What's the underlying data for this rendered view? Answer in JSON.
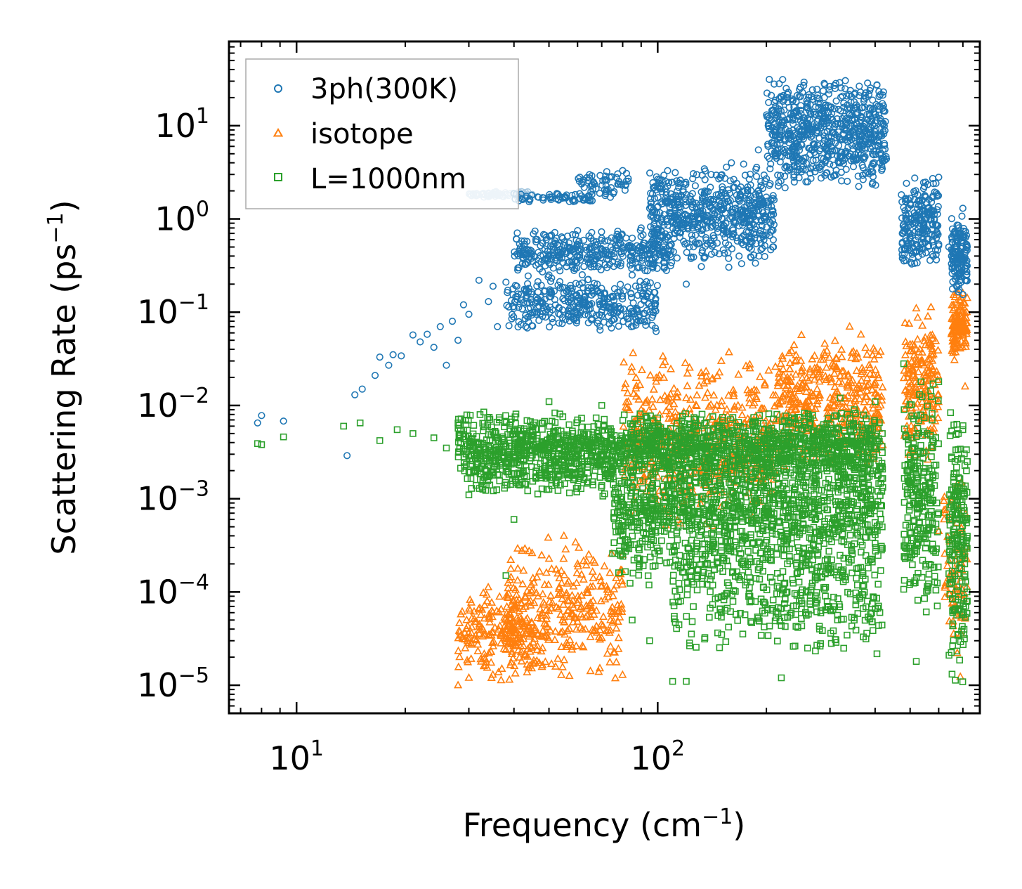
{
  "chart_data": {
    "type": "scatter",
    "title": "",
    "xlabel": "Frequency (cm⁻¹)",
    "ylabel": "Scattering Rate (ps⁻¹)",
    "xlabel_parts": {
      "prefix": "Frequency (cm",
      "sup": "−1",
      "suffix": ")"
    },
    "ylabel_parts": {
      "prefix": "Scattering Rate (ps",
      "sup": "−1",
      "suffix": ")"
    },
    "xscale": "log",
    "yscale": "log",
    "xlim": [
      6.5,
      780
    ],
    "ylim": [
      5e-06,
      80
    ],
    "x_ticks": [
      {
        "value": 10,
        "base": "10",
        "exp": "1"
      },
      {
        "value": 100,
        "base": "10",
        "exp": "2"
      }
    ],
    "y_ticks": [
      {
        "value": 10,
        "base": "10",
        "exp": "1"
      },
      {
        "value": 1,
        "base": "10",
        "exp": "0"
      },
      {
        "value": 0.1,
        "base": "10",
        "exp": "−1"
      },
      {
        "value": 0.01,
        "base": "10",
        "exp": "−2"
      },
      {
        "value": 0.001,
        "base": "10",
        "exp": "−3"
      },
      {
        "value": 0.0001,
        "base": "10",
        "exp": "−4"
      },
      {
        "value": 1e-05,
        "base": "10",
        "exp": "−5"
      }
    ],
    "legend_position": "top-left",
    "series": [
      {
        "name": "3ph(300K)",
        "marker": "circle",
        "color": "#1f77b4",
        "points": [
          [
            7.8,
            0.0065
          ],
          [
            8.0,
            0.0078
          ],
          [
            9.2,
            0.0068
          ],
          [
            13.8,
            0.0029
          ],
          [
            14.5,
            0.013
          ],
          [
            15.2,
            0.015
          ],
          [
            16.5,
            0.021
          ],
          [
            17.0,
            0.033
          ],
          [
            18.0,
            0.027
          ],
          [
            18.5,
            0.035
          ],
          [
            19.5,
            0.034
          ],
          [
            21.0,
            0.057
          ],
          [
            22.0,
            0.048
          ],
          [
            23.0,
            0.058
          ],
          [
            24.0,
            0.042
          ],
          [
            25.0,
            0.07
          ],
          [
            26.0,
            0.027
          ],
          [
            27.0,
            0.08
          ],
          [
            28.0,
            0.05
          ],
          [
            29.0,
            0.12
          ],
          [
            30.0,
            0.095
          ],
          [
            32.0,
            0.22
          ],
          [
            34.0,
            0.13
          ],
          [
            35.0,
            0.19
          ],
          [
            36.0,
            0.07
          ],
          [
            38.0,
            0.21
          ],
          [
            40.0,
            0.11
          ],
          [
            42.0,
            0.58
          ],
          [
            44.0,
            0.18
          ],
          [
            45.0,
            0.35
          ],
          [
            46.0,
            0.6
          ],
          [
            48.0,
            0.09
          ],
          [
            50.0,
            0.25
          ],
          [
            52.0,
            0.55
          ],
          [
            55.0,
            0.16
          ],
          [
            58.0,
            0.32
          ],
          [
            60.0,
            0.75
          ],
          [
            62.0,
            0.12
          ],
          [
            65.0,
            0.42
          ],
          [
            68.0,
            0.2
          ],
          [
            70.0,
            0.62
          ],
          [
            75.0,
            0.35
          ],
          [
            78.0,
            0.55
          ],
          [
            80.0,
            3.3
          ],
          [
            85.0,
            0.25
          ],
          [
            90.0,
            0.8
          ],
          [
            95.0,
            1.3
          ],
          [
            100.0,
            0.5
          ],
          [
            105.0,
            2.1
          ],
          [
            110.0,
            0.9
          ],
          [
            120.0,
            0.2
          ],
          [
            125.0,
            2.7
          ],
          [
            130.0,
            0.55
          ],
          [
            140.0,
            1.6
          ],
          [
            150.0,
            0.85
          ],
          [
            160.0,
            4.0
          ],
          [
            170.0,
            2.2
          ],
          [
            180.0,
            1.1
          ],
          [
            190.0,
            5.5
          ],
          [
            200.0,
            2.7
          ],
          [
            210.0,
            1.6
          ],
          [
            230.0,
            8.0
          ],
          [
            250.0,
            3.2
          ],
          [
            270.0,
            14.0
          ],
          [
            290.0,
            6.0
          ],
          [
            310.0,
            25.0
          ],
          [
            330.0,
            9.5
          ],
          [
            350.0,
            18.0
          ],
          [
            370.0,
            4.5
          ],
          [
            390.0,
            7.5
          ],
          [
            410.0,
            5.5
          ],
          [
            430.0,
            4.4
          ],
          [
            500.0,
            0.7
          ],
          [
            520.0,
            0.45
          ],
          [
            540.0,
            1.6
          ],
          [
            560.0,
            1.1
          ],
          [
            580.0,
            2.4
          ],
          [
            600.0,
            2.8
          ],
          [
            640.0,
            0.5
          ],
          [
            660.0,
            0.32
          ],
          [
            680.0,
            0.85
          ],
          [
            700.0,
            1.3
          ],
          [
            710.0,
            0.22
          ]
        ],
        "clusters": [
          {
            "x": [
              30,
              45
            ],
            "y": [
              1.7,
              2.0
            ],
            "n": 60,
            "color": "#a6c8e0"
          },
          {
            "x": [
              40,
              66
            ],
            "y": [
              1.5,
              1.9
            ],
            "n": 60
          },
          {
            "x": [
              40,
              110
            ],
            "y": [
              0.25,
              0.8
            ],
            "n": 360
          },
          {
            "x": [
              60,
              85
            ],
            "y": [
              1.6,
              3.4
            ],
            "n": 60
          },
          {
            "x": [
              38,
              100
            ],
            "y": [
              0.06,
              0.25
            ],
            "n": 360
          },
          {
            "x": [
              95,
              210
            ],
            "y": [
              0.3,
              4.0
            ],
            "n": 600
          },
          {
            "x": [
              200,
              430
            ],
            "y": [
              2.0,
              35.0
            ],
            "n": 700
          },
          {
            "x": [
              470,
              600
            ],
            "y": [
              0.28,
              3.0
            ],
            "n": 220
          },
          {
            "x": [
              650,
              720
            ],
            "y": [
              0.15,
              1.2
            ],
            "n": 140
          }
        ]
      },
      {
        "name": "isotope",
        "marker": "triangle",
        "color": "#ff7f0e",
        "points": [
          [
            28.0,
            1e-05
          ],
          [
            30.0,
            1.2e-05
          ],
          [
            33.0,
            1.6e-05
          ],
          [
            38.0,
            2.4e-05
          ],
          [
            42.0,
            1.8e-05
          ],
          [
            48.0,
            2.5e-05
          ],
          [
            55.0,
            0.0004
          ],
          [
            60.0,
            0.0002
          ],
          [
            70.0,
            3.2e-05
          ],
          [
            80.0,
            0.00025
          ],
          [
            90.0,
            0.009
          ],
          [
            100.0,
            0.003
          ],
          [
            120.0,
            0.012
          ],
          [
            150.0,
            0.03
          ],
          [
            180.0,
            0.025
          ],
          [
            210.0,
            0.002
          ],
          [
            240.0,
            0.015
          ],
          [
            280.0,
            0.012
          ],
          [
            340.0,
            0.07
          ],
          [
            380.0,
            0.035
          ],
          [
            410.0,
            0.008
          ],
          [
            490.0,
            0.006
          ],
          [
            520.0,
            0.11
          ],
          [
            540.0,
            0.018
          ],
          [
            560.0,
            0.09
          ],
          [
            580.0,
            0.0052
          ],
          [
            600.0,
            0.00045
          ],
          [
            640.0,
            0.00012
          ],
          [
            660.0,
            0.05
          ],
          [
            680.0,
            0.08
          ],
          [
            700.0,
            0.16
          ],
          [
            710.0,
            0.016
          ]
        ],
        "clusters": [
          {
            "x": [
              28,
              45
            ],
            "y": [
              1e-05,
              0.00012
            ],
            "n": 200
          },
          {
            "x": [
              38,
              80
            ],
            "y": [
              1e-05,
              0.0004
            ],
            "n": 320
          },
          {
            "x": [
              80,
              210
            ],
            "y": [
              0.0005,
              0.04
            ],
            "n": 500
          },
          {
            "x": [
              210,
              420
            ],
            "y": [
              0.002,
              0.06
            ],
            "n": 400
          },
          {
            "x": [
              480,
              600
            ],
            "y": [
              0.002,
              0.12
            ],
            "n": 180
          },
          {
            "x": [
              650,
              720
            ],
            "y": [
              0.03,
              0.18
            ],
            "n": 120
          },
          {
            "x": [
              620,
              720
            ],
            "y": [
              1e-05,
              0.002
            ],
            "n": 80
          }
        ]
      },
      {
        "name": "L=1000nm",
        "marker": "square",
        "color": "#2ca02c",
        "points": [
          [
            7.8,
            0.0039
          ],
          [
            8.0,
            0.0038
          ],
          [
            9.2,
            0.0046
          ],
          [
            13.5,
            0.006
          ],
          [
            15.0,
            0.0065
          ],
          [
            17.0,
            0.0042
          ],
          [
            19.0,
            0.0055
          ],
          [
            21.0,
            0.005
          ],
          [
            24.0,
            0.0045
          ],
          [
            26.0,
            0.0035
          ],
          [
            28.0,
            0.0065
          ],
          [
            30.0,
            0.0011
          ],
          [
            33.0,
            0.0085
          ],
          [
            36.0,
            0.0045
          ],
          [
            38.0,
            0.00015
          ],
          [
            40.0,
            0.0006
          ],
          [
            45.0,
            0.0055
          ],
          [
            50.0,
            0.011
          ],
          [
            55.0,
            0.0025
          ],
          [
            60.0,
            0.007
          ],
          [
            70.0,
            0.01
          ],
          [
            80.0,
            0.0004
          ],
          [
            85.0,
            5e-05
          ],
          [
            95.0,
            3e-05
          ],
          [
            110.0,
            1.1e-05
          ],
          [
            120.0,
            1.1e-05
          ],
          [
            150.0,
            6e-05
          ],
          [
            180.0,
            9e-05
          ],
          [
            220.0,
            1.2e-05
          ],
          [
            260.0,
            2.5e-05
          ],
          [
            320.0,
            0.012
          ],
          [
            350.0,
            0.009
          ],
          [
            400.0,
            0.011
          ],
          [
            480.0,
            0.028
          ],
          [
            520.0,
            1.8e-05
          ],
          [
            560.0,
            0.0012
          ],
          [
            600.0,
            0.018
          ],
          [
            640.0,
            0.0004
          ],
          [
            680.0,
            0.005
          ],
          [
            700.0,
            0.0055
          ],
          [
            720.0,
            0.0025
          ]
        ],
        "clusters": [
          {
            "x": [
              28,
              420
            ],
            "y": [
              0.0015,
              0.009
            ],
            "n": 1500
          },
          {
            "x": [
              75,
              420
            ],
            "y": [
              0.0001,
              0.006
            ],
            "n": 1400
          },
          {
            "x": [
              30,
              75
            ],
            "y": [
              0.001,
              0.004
            ],
            "n": 200
          },
          {
            "x": [
              110,
              420
            ],
            "y": [
              2e-05,
              0.0003
            ],
            "n": 300
          },
          {
            "x": [
              480,
              600
            ],
            "y": [
              5e-05,
              0.02
            ],
            "n": 250
          },
          {
            "x": [
              640,
              720
            ],
            "y": [
              1e-05,
              0.012
            ],
            "n": 200
          }
        ]
      }
    ]
  }
}
